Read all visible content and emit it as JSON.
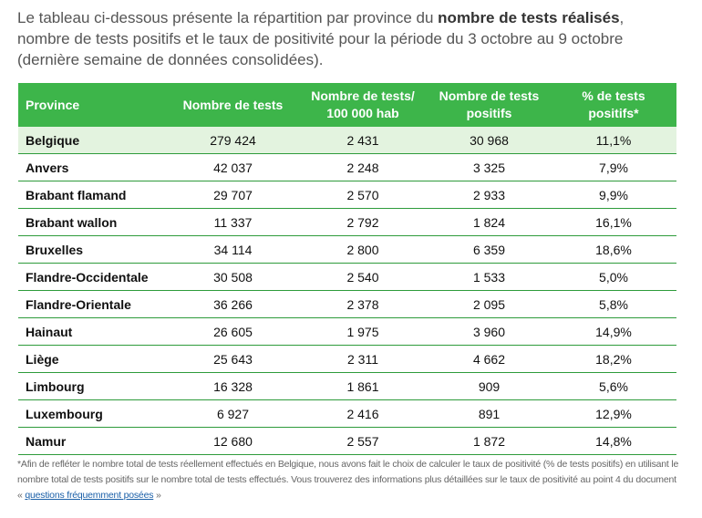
{
  "intro": {
    "part1": "Le tableau ci-dessous présente la répartition par province du ",
    "bold": "nombre de tests réalisés",
    "part2": ", nombre de tests positifs et le taux de positivité pour la période du 3 octobre au 9 octobre (dernière semaine de données consolidées)."
  },
  "table": {
    "headers": {
      "province": "Province",
      "tests": "Nombre de tests",
      "per100k_line1": "Nombre de tests/",
      "per100k_line2": "100 000 hab",
      "positive_line1": "Nombre de tests",
      "positive_line2": "positifs",
      "rate_line1": "% de tests",
      "rate_line2": "positifs*"
    },
    "rows": [
      {
        "province": "Belgique",
        "tests": "279 424",
        "per100k": "2 431",
        "positive": "30 968",
        "rate": "11,1%"
      },
      {
        "province": "Anvers",
        "tests": "42 037",
        "per100k": "2 248",
        "positive": "3 325",
        "rate": "7,9%"
      },
      {
        "province": "Brabant flamand",
        "tests": "29 707",
        "per100k": "2 570",
        "positive": "2 933",
        "rate": "9,9%"
      },
      {
        "province": "Brabant wallon",
        "tests": "11 337",
        "per100k": "2 792",
        "positive": "1 824",
        "rate": "16,1%"
      },
      {
        "province": "Bruxelles",
        "tests": "34 114",
        "per100k": "2 800",
        "positive": "6 359",
        "rate": "18,6%"
      },
      {
        "province": "Flandre-Occidentale",
        "tests": "30 508",
        "per100k": "2 540",
        "positive": "1 533",
        "rate": "5,0%"
      },
      {
        "province": "Flandre-Orientale",
        "tests": "36 266",
        "per100k": "2 378",
        "positive": "2 095",
        "rate": "5,8%"
      },
      {
        "province": "Hainaut",
        "tests": "26 605",
        "per100k": "1 975",
        "positive": "3 960",
        "rate": "14,9%"
      },
      {
        "province": "Liège",
        "tests": "25 643",
        "per100k": "2 311",
        "positive": "4 662",
        "rate": "18,2%"
      },
      {
        "province": "Limbourg",
        "tests": "16 328",
        "per100k": "1 861",
        "positive": "909",
        "rate": "5,6%"
      },
      {
        "province": "Luxembourg",
        "tests": "6 927",
        "per100k": "2 416",
        "positive": "891",
        "rate": "12,9%"
      },
      {
        "province": "Namur",
        "tests": "12 680",
        "per100k": "2 557",
        "positive": "1 872",
        "rate": "14,8%"
      }
    ]
  },
  "footnote": {
    "text": "*Afin de refléter le nombre total de tests réellement effectués en Belgique, nous avons fait le choix de calculer le taux de positivité (% de tests positifs) en utilisant le nombre total de tests positifs sur le nombre total de tests effectués. Vous trouverez des informations plus détaillées sur le taux de positivité au point 4 du document « ",
    "link": "questions fréquemment posées",
    "end": " »"
  },
  "colors": {
    "header_green": "#3db54a",
    "total_row_bg": "#e3f3df",
    "row_border": "#2e9b3b",
    "link": "#1a5fa8"
  }
}
